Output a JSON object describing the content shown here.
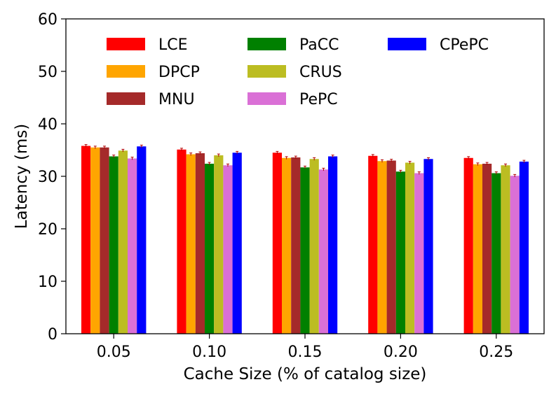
{
  "chart_data": {
    "type": "bar",
    "title": "",
    "xlabel": "Cache Size (% of catalog size)",
    "ylabel": "Latency (ms)",
    "ylim": [
      0,
      60
    ],
    "yticks": [
      0,
      10,
      20,
      30,
      40,
      50,
      60
    ],
    "categories": [
      "0.05",
      "0.10",
      "0.15",
      "0.20",
      "0.25"
    ],
    "grid": false,
    "legend_position": "top",
    "legend_columns": 3,
    "error_bars": true,
    "series": [
      {
        "name": "LCE",
        "color": "#ff0000",
        "values": [
          35.8,
          35.1,
          34.5,
          33.9,
          33.5
        ]
      },
      {
        "name": "DPCP",
        "color": "#ffa500",
        "values": [
          35.5,
          34.2,
          33.5,
          32.9,
          32.3
        ]
      },
      {
        "name": "MNU",
        "color": "#a52a2a",
        "values": [
          35.5,
          34.4,
          33.6,
          33.0,
          32.4
        ]
      },
      {
        "name": "PaCC",
        "color": "#008000",
        "values": [
          33.8,
          32.4,
          31.7,
          30.9,
          30.6
        ]
      },
      {
        "name": "CRUS",
        "color": "#bcbd22",
        "values": [
          34.9,
          34.0,
          33.3,
          32.6,
          32.1
        ]
      },
      {
        "name": "PePC",
        "color": "#da70d6",
        "values": [
          33.4,
          32.1,
          31.3,
          30.6,
          30.1
        ]
      },
      {
        "name": "CPePC",
        "color": "#0000ff",
        "values": [
          35.7,
          34.5,
          33.8,
          33.3,
          32.8
        ]
      }
    ]
  }
}
